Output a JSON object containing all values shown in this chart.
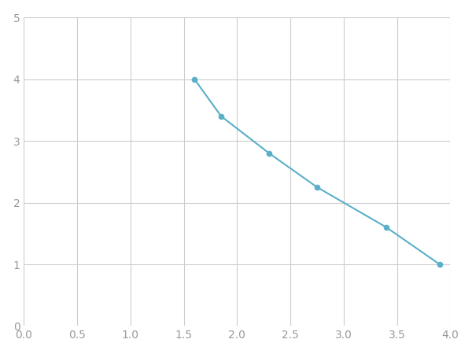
{
  "x": [
    1.6,
    1.85,
    2.3,
    2.75,
    3.4,
    3.9
  ],
  "y": [
    4.0,
    3.4,
    2.8,
    2.25,
    1.6,
    1.0
  ],
  "line_color": "#5aafc8",
  "marker_color": "#5aafc8",
  "marker_size": 5,
  "line_width": 1.5,
  "xlim": [
    0.0,
    4.0
  ],
  "ylim": [
    0,
    5
  ],
  "xticks": [
    0.0,
    0.5,
    1.0,
    1.5,
    2.0,
    2.5,
    3.0,
    3.5,
    4.0
  ],
  "yticks": [
    0,
    1,
    2,
    3,
    4,
    5
  ],
  "grid_color": "#cccccc",
  "background_color": "#ffffff",
  "figure_background": "#ffffff",
  "tick_color": "#999999",
  "tick_fontsize": 10
}
